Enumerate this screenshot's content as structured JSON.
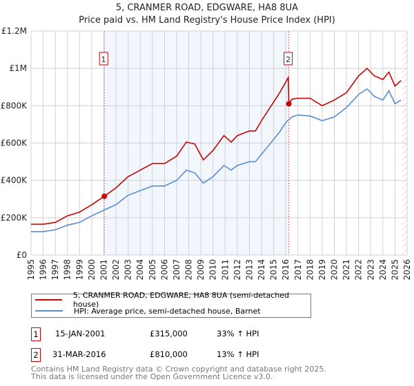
{
  "chart_data": {
    "type": "line",
    "title": "5, CRANMER ROAD, EDGWARE, HA8 8UA",
    "subtitle": "Price paid vs. HM Land Registry's House Price Index (HPI)",
    "xlim": [
      1995,
      2026
    ],
    "ylim": [
      0,
      1200000
    ],
    "y_ticks": [
      {
        "v": 0,
        "label": "£0"
      },
      {
        "v": 200000,
        "label": "£200K"
      },
      {
        "v": 400000,
        "label": "£400K"
      },
      {
        "v": 600000,
        "label": "£600K"
      },
      {
        "v": 800000,
        "label": "£800K"
      },
      {
        "v": 1000000,
        "label": "£1M"
      },
      {
        "v": 1200000,
        "label": "£1.2M"
      }
    ],
    "x_ticks": [
      "1995",
      "1996",
      "1997",
      "1998",
      "1999",
      "2000",
      "2001",
      "2002",
      "2003",
      "2004",
      "2005",
      "2006",
      "2007",
      "2008",
      "2009",
      "2010",
      "2011",
      "2012",
      "2013",
      "2014",
      "2015",
      "2016",
      "2017",
      "2018",
      "2019",
      "2020",
      "2021",
      "2022",
      "2023",
      "2024",
      "2025",
      "2026"
    ],
    "series": [
      {
        "name": "5, CRANMER ROAD, EDGWARE, HA8 8UA (semi-detached house)",
        "color": "#cc0000",
        "x": [
          1995,
          1996,
          1997,
          1998,
          1999,
          2000,
          2001.04,
          2002,
          2003,
          2004,
          2005,
          2006,
          2007,
          2007.8,
          2008.5,
          2009.2,
          2010,
          2010.9,
          2011.5,
          2012,
          2013,
          2013.5,
          2014,
          2015,
          2015.5,
          2016.2,
          2016.25,
          2016.5,
          2017,
          2018,
          2019,
          2020,
          2021,
          2022,
          2022.7,
          2023.3,
          2024,
          2024.5,
          2025,
          2025.5
        ],
        "y": [
          165000,
          165000,
          175000,
          210000,
          230000,
          270000,
          315000,
          360000,
          420000,
          455000,
          490000,
          490000,
          530000,
          605000,
          595000,
          510000,
          560000,
          640000,
          605000,
          640000,
          665000,
          665000,
          720000,
          820000,
          870000,
          950000,
          810000,
          835000,
          840000,
          840000,
          800000,
          830000,
          870000,
          960000,
          1000000,
          960000,
          940000,
          980000,
          905000,
          935000
        ]
      },
      {
        "name": "HPI: Average price, semi-detached house, Barnet",
        "color": "#5b8bd0",
        "x": [
          1995,
          1996,
          1997,
          1998,
          1999,
          2000,
          2001,
          2002,
          2003,
          2004,
          2005,
          2006,
          2007,
          2007.8,
          2008.5,
          2009.2,
          2010,
          2010.9,
          2011.5,
          2012,
          2013,
          2013.5,
          2014,
          2015,
          2015.5,
          2016,
          2016.5,
          2017,
          2018,
          2019,
          2020,
          2021,
          2022,
          2022.7,
          2023.3,
          2024,
          2024.5,
          2025,
          2025.5
        ],
        "y": [
          125000,
          125000,
          135000,
          160000,
          175000,
          210000,
          240000,
          270000,
          320000,
          345000,
          370000,
          370000,
          400000,
          455000,
          440000,
          385000,
          420000,
          480000,
          455000,
          480000,
          500000,
          500000,
          540000,
          620000,
          660000,
          710000,
          740000,
          750000,
          745000,
          720000,
          740000,
          790000,
          860000,
          890000,
          850000,
          830000,
          880000,
          810000,
          830000
        ]
      }
    ],
    "sales": [
      {
        "id": "1",
        "x": 2001.04,
        "date": "15-JAN-2001",
        "price": "£315,000",
        "value": 315000,
        "hpi": "33% ↑ HPI"
      },
      {
        "id": "2",
        "x": 2016.25,
        "date": "31-MAR-2016",
        "price": "£810,000",
        "value": 810000,
        "hpi": "13% ↑ HPI"
      }
    ],
    "legend_position": "below"
  },
  "footer": {
    "line1": "Contains HM Land Registry data © Crown copyright and database right 2025.",
    "line2": "This data is licensed under the Open Government Licence v3.0."
  }
}
